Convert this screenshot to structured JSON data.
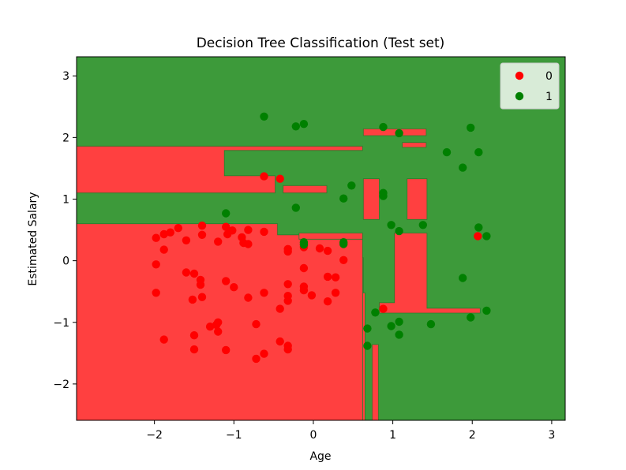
{
  "chart_data": {
    "type": "scatter",
    "title": "Decision Tree Classification (Test set)",
    "xlabel": "Age",
    "ylabel": "Estimated Salary",
    "xlim": [
      -2.98,
      3.17
    ],
    "ylim": [
      -2.59,
      3.31
    ],
    "x_ticks": [
      -2,
      -1,
      0,
      1,
      2,
      3
    ],
    "x_tick_labels": [
      "−2",
      "−1",
      "0",
      "1",
      "2",
      "3"
    ],
    "y_ticks": [
      -2,
      -1,
      0,
      1,
      2,
      3
    ],
    "y_tick_labels": [
      "−2",
      "−1",
      "0",
      "1",
      "2",
      "3"
    ],
    "grid": false,
    "legend_position": "top-right",
    "background_region_color": "#3d9a3a",
    "regions": [
      {
        "class": "0",
        "color": "#ff4040",
        "polygons": [
          [
            [
              -2.98,
              -2.59
            ],
            [
              0.62,
              -2.59
            ],
            [
              0.62,
              0.05
            ],
            [
              0.63,
              0.05
            ],
            [
              0.63,
              -0.52
            ],
            [
              0.65,
              -0.52
            ],
            [
              0.65,
              -2.59
            ],
            [
              -2.98,
              -2.59
            ]
          ],
          [
            [
              -2.98,
              -2.59
            ],
            [
              -2.98,
              0.6
            ],
            [
              -0.45,
              0.6
            ],
            [
              -0.45,
              0.42
            ],
            [
              0.62,
              0.42
            ],
            [
              0.62,
              -2.59
            ]
          ],
          [
            [
              -2.98,
              1.1
            ],
            [
              -2.98,
              1.86
            ],
            [
              0.62,
              1.86
            ],
            [
              0.62,
              1.79
            ],
            [
              -1.12,
              1.79
            ],
            [
              -1.12,
              1.38
            ],
            [
              -0.48,
              1.38
            ],
            [
              -0.48,
              1.1
            ]
          ],
          [
            [
              -0.38,
              1.1
            ],
            [
              -0.38,
              1.22
            ],
            [
              0.17,
              1.22
            ],
            [
              0.17,
              1.1
            ]
          ],
          [
            [
              0.63,
              2.03
            ],
            [
              0.63,
              2.14
            ],
            [
              1.42,
              2.14
            ],
            [
              1.42,
              2.03
            ]
          ],
          [
            [
              1.12,
              1.84
            ],
            [
              1.12,
              1.92
            ],
            [
              1.42,
              1.92
            ],
            [
              1.42,
              1.84
            ]
          ],
          [
            [
              0.63,
              0.67
            ],
            [
              0.63,
              1.33
            ],
            [
              0.83,
              1.33
            ],
            [
              0.83,
              0.67
            ]
          ],
          [
            [
              1.18,
              0.67
            ],
            [
              1.18,
              1.33
            ],
            [
              1.43,
              1.33
            ],
            [
              1.43,
              0.67
            ]
          ],
          [
            [
              0.83,
              -0.85
            ],
            [
              0.83,
              -0.68
            ],
            [
              1.02,
              -0.68
            ],
            [
              1.02,
              0.45
            ],
            [
              1.43,
              0.45
            ],
            [
              1.43,
              -0.77
            ],
            [
              2.1,
              -0.77
            ],
            [
              2.1,
              -0.85
            ]
          ],
          [
            [
              0.74,
              -2.59
            ],
            [
              0.74,
              -1.36
            ],
            [
              0.82,
              -1.36
            ],
            [
              0.82,
              -2.59
            ]
          ],
          [
            [
              -0.18,
              0.35
            ],
            [
              -0.18,
              0.45
            ],
            [
              0.62,
              0.45
            ],
            [
              0.62,
              0.35
            ]
          ]
        ]
      }
    ],
    "series": [
      {
        "name": "0",
        "color": "#ff0000",
        "points": [
          [
            -0.62,
            1.37
          ],
          [
            -0.42,
            1.33
          ],
          [
            -1.98,
            0.37
          ],
          [
            -1.88,
            0.43
          ],
          [
            -1.8,
            0.46
          ],
          [
            -1.7,
            0.53
          ],
          [
            -1.6,
            0.33
          ],
          [
            -1.4,
            0.57
          ],
          [
            -1.4,
            0.42
          ],
          [
            -1.2,
            0.31
          ],
          [
            -1.1,
            0.55
          ],
          [
            -1.08,
            0.43
          ],
          [
            -1.02,
            0.49
          ],
          [
            -0.9,
            0.38
          ],
          [
            -0.82,
            0.5
          ],
          [
            -0.62,
            0.47
          ],
          [
            -0.88,
            0.29
          ],
          [
            -0.82,
            0.27
          ],
          [
            -1.88,
            0.18
          ],
          [
            -1.98,
            -0.06
          ],
          [
            -1.6,
            -0.19
          ],
          [
            -1.5,
            -0.21
          ],
          [
            -1.42,
            -0.31
          ],
          [
            -1.42,
            -0.39
          ],
          [
            -1.1,
            -0.33
          ],
          [
            -1.0,
            -0.43
          ],
          [
            -1.98,
            -0.52
          ],
          [
            -1.52,
            -0.63
          ],
          [
            -1.4,
            -0.59
          ],
          [
            -0.82,
            -0.6
          ],
          [
            -0.62,
            -0.52
          ],
          [
            -1.2,
            -1.0
          ],
          [
            -1.22,
            -1.04
          ],
          [
            -1.3,
            -1.07
          ],
          [
            -1.2,
            -1.15
          ],
          [
            -0.72,
            -1.03
          ],
          [
            -1.5,
            -1.21
          ],
          [
            -1.5,
            -1.44
          ],
          [
            -1.1,
            -1.45
          ],
          [
            -1.88,
            -1.28
          ],
          [
            -0.62,
            -1.51
          ],
          [
            -0.72,
            -1.59
          ],
          [
            -0.42,
            -1.31
          ],
          [
            -0.32,
            -1.38
          ],
          [
            -0.32,
            -1.44
          ],
          [
            -0.42,
            -0.78
          ],
          [
            -0.32,
            -0.38
          ],
          [
            -0.32,
            -0.57
          ],
          [
            -0.32,
            -0.65
          ],
          [
            -0.32,
            0.15
          ],
          [
            -0.32,
            0.19
          ],
          [
            -0.12,
            0.22
          ],
          [
            -0.12,
            -0.12
          ],
          [
            -0.12,
            -0.42
          ],
          [
            -0.12,
            -0.48
          ],
          [
            -0.02,
            -0.56
          ],
          [
            0.08,
            0.2
          ],
          [
            0.18,
            0.16
          ],
          [
            0.18,
            -0.26
          ],
          [
            0.28,
            -0.27
          ],
          [
            0.28,
            -0.52
          ],
          [
            0.18,
            -0.66
          ],
          [
            0.38,
            0.01
          ],
          [
            0.88,
            -0.78
          ],
          [
            2.07,
            0.4
          ]
        ]
      },
      {
        "name": "1",
        "color": "#008000",
        "points": [
          [
            -0.62,
            2.34
          ],
          [
            -0.22,
            2.18
          ],
          [
            -0.12,
            2.22
          ],
          [
            0.88,
            2.17
          ],
          [
            1.08,
            2.07
          ],
          [
            1.98,
            2.16
          ],
          [
            1.68,
            1.76
          ],
          [
            2.08,
            1.76
          ],
          [
            1.88,
            1.51
          ],
          [
            0.48,
            1.22
          ],
          [
            0.38,
            1.01
          ],
          [
            0.88,
            1.1
          ],
          [
            0.88,
            1.05
          ],
          [
            -0.22,
            0.86
          ],
          [
            -1.1,
            0.77
          ],
          [
            0.98,
            0.58
          ],
          [
            1.08,
            0.48
          ],
          [
            1.38,
            0.58
          ],
          [
            2.08,
            0.54
          ],
          [
            2.18,
            0.4
          ],
          [
            -0.12,
            0.3
          ],
          [
            -0.12,
            0.26
          ],
          [
            0.38,
            0.3
          ],
          [
            0.38,
            0.27
          ],
          [
            1.88,
            -0.28
          ],
          [
            0.78,
            -0.84
          ],
          [
            1.98,
            -0.92
          ],
          [
            2.18,
            -0.81
          ],
          [
            0.68,
            -1.1
          ],
          [
            0.98,
            -1.06
          ],
          [
            1.08,
            -0.99
          ],
          [
            1.48,
            -1.03
          ],
          [
            1.08,
            -1.2
          ],
          [
            0.68,
            -1.38
          ]
        ]
      }
    ],
    "legend": [
      {
        "label": "0",
        "color": "#ff0000"
      },
      {
        "label": "1",
        "color": "#008000"
      }
    ]
  }
}
